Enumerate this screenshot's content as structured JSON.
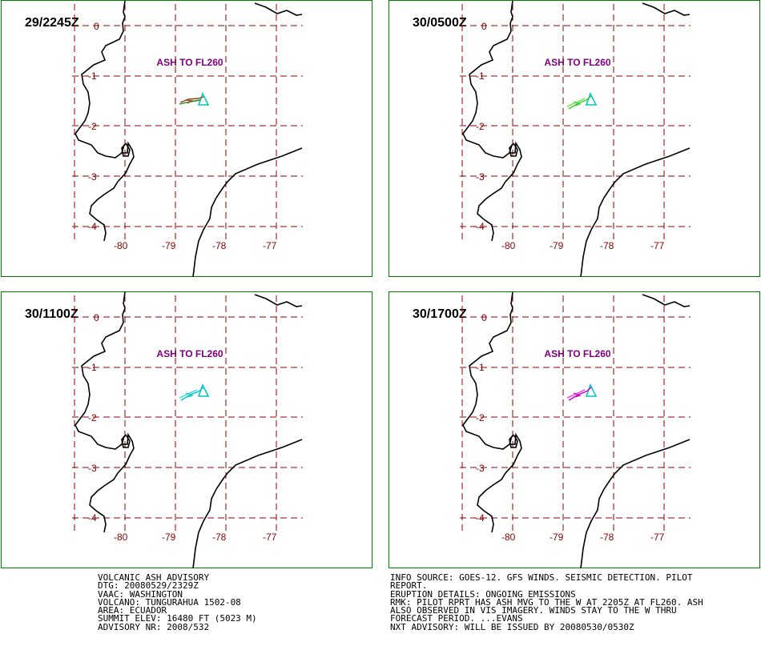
{
  "colors": {
    "border": "#008000",
    "grid": "#8b0000",
    "label": "#8b0000",
    "ash_text": "#800080",
    "coast": "#000000",
    "volcano_symbol": "#00c8c8"
  },
  "panels": [
    {
      "time": "29/2245Z",
      "ash_label": "ASH TO FL260",
      "plume_colors": [
        "#8b4513",
        "#228b22"
      ]
    },
    {
      "time": "30/0500Z",
      "ash_label": "ASH TO FL260",
      "plume_colors": [
        "#33cc33",
        "#66ee33"
      ]
    },
    {
      "time": "30/1100Z",
      "ash_label": "ASH TO FL260",
      "plume_colors": [
        "#00c8c8",
        "#33dddd"
      ]
    },
    {
      "time": "30/1700Z",
      "ash_label": "ASH TO FL260",
      "plume_colors": [
        "#cc00cc",
        "#ff33ff"
      ]
    }
  ],
  "lat_labels": [
    "0",
    "-1",
    "-2",
    "-3",
    "-4"
  ],
  "lon_labels": [
    "-80",
    "-79",
    "-78",
    "-77"
  ],
  "advisory_left": [
    "VOLCANIC ASH ADVISORY",
    "DTG: 20080529/2329Z",
    "VAAC: WASHINGTON",
    "VOLCANO: TUNGURAHUA 1502-08",
    "AREA: ECUADOR",
    "SUMMIT ELEV: 16480 FT (5023 M)",
    "ADVISORY NR: 2008/532"
  ],
  "advisory_right": [
    "INFO SOURCE: GOES-12. GFS WINDS. SEISMIC DETECTION. PILOT",
    "REPORT.",
    "ERUPTION DETAILS: ONGOING EMISSIONS",
    "RMK: PILOT RPRT HAS ASH MVG TO THE W AT 2205Z AT FL260. ASH",
    "ALSO OBSERVED IN VIS IMAGERY. WINDS STAY TO THE W THRU",
    "FORECAST PERIOD. ...EVANS",
    "NXT ADVISORY: WILL BE ISSUED BY 20080530/0530Z"
  ]
}
